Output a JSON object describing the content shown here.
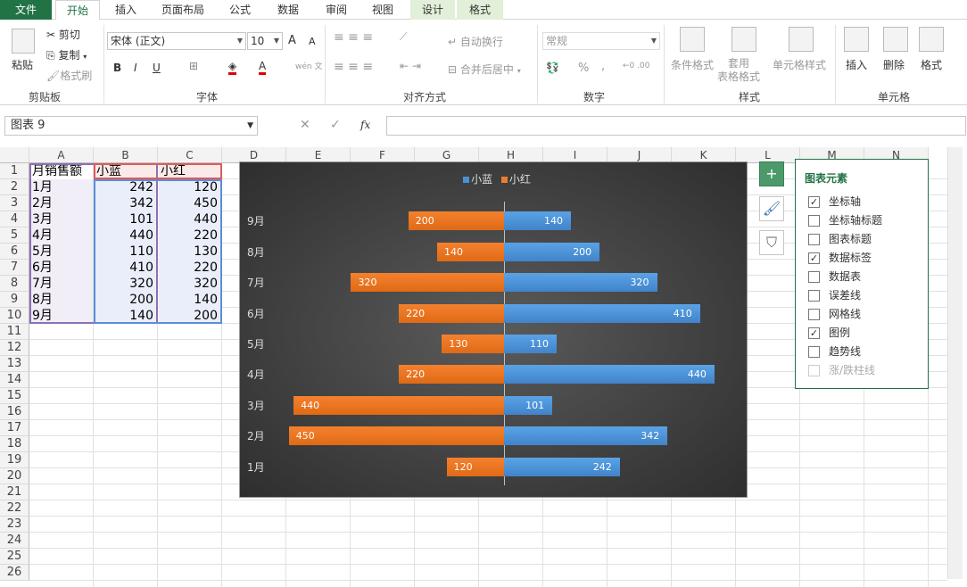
{
  "tabs": [
    "文件",
    "开始",
    "插入",
    "页面布局",
    "公式",
    "数据",
    "审阅",
    "视图",
    "设计",
    "格式"
  ],
  "clipboard": {
    "paste": "粘贴",
    "cut": "剪切",
    "copy": "复制",
    "format_painter": "格式刷",
    "label": "剪贴板"
  },
  "font": {
    "name": "宋体 (正文)",
    "size": "10",
    "label": "字体",
    "bold": "B",
    "italic": "I",
    "underline": "U",
    "grow": "A",
    "shrink": "A",
    "wen": "wén 文"
  },
  "align": {
    "wrap": "自动换行",
    "merge": "合并后居中",
    "label": "对齐方式"
  },
  "number": {
    "format": "常规",
    "percent": "%",
    "comma": ",",
    "label": "数字"
  },
  "styles": {
    "cond": "条件格式",
    "table": "套用\n表格格式",
    "cell": "单元格样式",
    "label": "样式"
  },
  "cells": {
    "insert": "插入",
    "delete": "删除",
    "format": "格式",
    "label": "单元格"
  },
  "name_box": "图表 9",
  "fx": "fx",
  "columns": [
    "A",
    "B",
    "C",
    "D",
    "E",
    "F",
    "G",
    "H",
    "I",
    "J",
    "K",
    "L",
    "M",
    "N"
  ],
  "rows": [
    "1",
    "2",
    "3",
    "4",
    "5",
    "6",
    "7",
    "8",
    "9",
    "10",
    "11",
    "12",
    "13",
    "14",
    "15",
    "16",
    "17",
    "18",
    "19",
    "20",
    "21",
    "22",
    "23",
    "24",
    "25",
    "26"
  ],
  "table": {
    "headers": [
      "月销售额",
      "小蓝",
      "小红"
    ],
    "rows": [
      [
        "1月",
        "242",
        "120"
      ],
      [
        "2月",
        "342",
        "450"
      ],
      [
        "3月",
        "101",
        "440"
      ],
      [
        "4月",
        "440",
        "220"
      ],
      [
        "5月",
        "110",
        "130"
      ],
      [
        "6月",
        "410",
        "220"
      ],
      [
        "7月",
        "320",
        "320"
      ],
      [
        "8月",
        "200",
        "140"
      ],
      [
        "9月",
        "140",
        "200"
      ]
    ]
  },
  "chart_data": {
    "type": "bar",
    "categories": [
      "1月",
      "2月",
      "3月",
      "4月",
      "5月",
      "6月",
      "7月",
      "8月",
      "9月"
    ],
    "series": [
      {
        "name": "小蓝",
        "values": [
          242,
          342,
          101,
          440,
          110,
          410,
          320,
          200,
          140
        ],
        "color": "#4a90d9"
      },
      {
        "name": "小红",
        "values": [
          120,
          450,
          440,
          220,
          130,
          220,
          320,
          140,
          200
        ],
        "color": "#ed7d31"
      }
    ],
    "title": "",
    "legend": "top",
    "orientation": "horizontal-butterfly"
  },
  "panel": {
    "title": "图表元素",
    "options": [
      {
        "label": "坐标轴",
        "checked": true
      },
      {
        "label": "坐标轴标题",
        "checked": false
      },
      {
        "label": "图表标题",
        "checked": false
      },
      {
        "label": "数据标签",
        "checked": true
      },
      {
        "label": "数据表",
        "checked": false
      },
      {
        "label": "误差线",
        "checked": false
      },
      {
        "label": "网格线",
        "checked": false
      },
      {
        "label": "图例",
        "checked": true
      },
      {
        "label": "趋势线",
        "checked": false
      },
      {
        "label": "涨/跌柱线",
        "checked": false,
        "disabled": true
      }
    ]
  },
  "checkmark": "✓"
}
